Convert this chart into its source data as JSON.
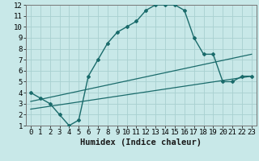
{
  "xlabel": "Humidex (Indice chaleur)",
  "xlim": [
    -0.5,
    23.5
  ],
  "ylim": [
    1,
    12
  ],
  "xticks": [
    0,
    1,
    2,
    3,
    4,
    5,
    6,
    7,
    8,
    9,
    10,
    11,
    12,
    13,
    14,
    15,
    16,
    17,
    18,
    19,
    20,
    21,
    22,
    23
  ],
  "yticks": [
    1,
    2,
    3,
    4,
    5,
    6,
    7,
    8,
    9,
    10,
    11,
    12
  ],
  "bg_color": "#c8e8e8",
  "line_color": "#1a6b6b",
  "curve1_x": [
    0,
    1,
    2,
    3,
    4,
    5,
    6,
    7,
    8,
    9,
    10,
    11,
    12,
    13,
    14,
    15,
    16,
    17,
    18,
    19,
    20,
    21,
    22,
    23
  ],
  "curve1_y": [
    4.0,
    3.5,
    3.0,
    2.0,
    1.0,
    1.5,
    5.5,
    7.0,
    8.5,
    9.5,
    10.0,
    10.5,
    11.5,
    12.0,
    12.0,
    12.0,
    11.5,
    9.0,
    7.5,
    7.5,
    5.0,
    5.0,
    5.5,
    5.5
  ],
  "curve2_x": [
    0,
    23
  ],
  "curve2_y": [
    3.2,
    7.5
  ],
  "curve3_x": [
    0,
    23
  ],
  "curve3_y": [
    2.5,
    5.5
  ],
  "grid_color": "#a8d0d0",
  "tick_fontsize": 6.5,
  "label_fontsize": 7.5
}
